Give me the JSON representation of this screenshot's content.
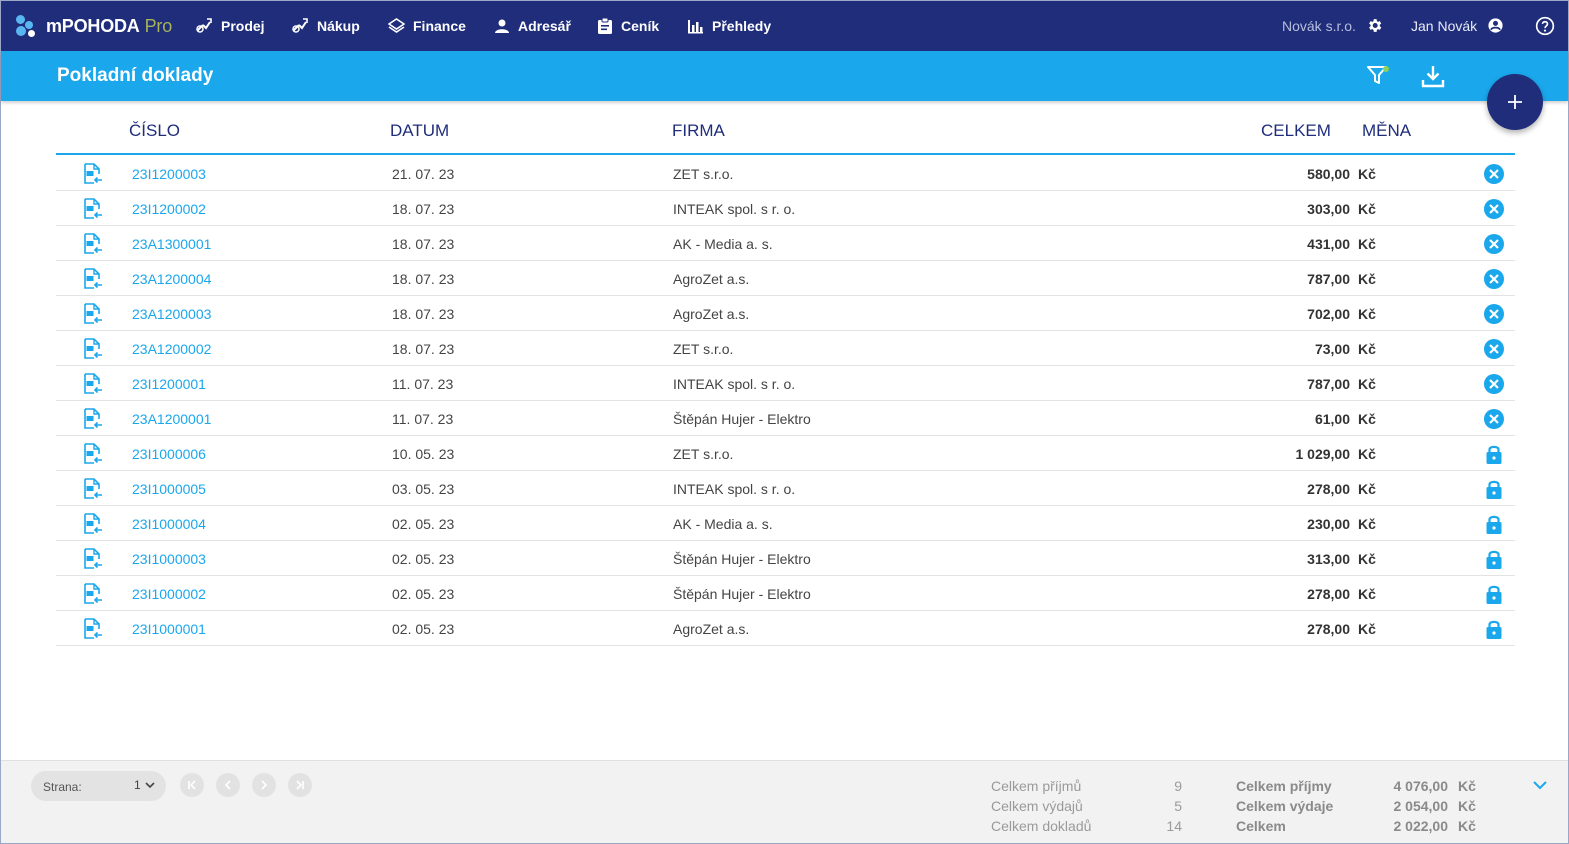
{
  "app": {
    "name": "mPOHODA",
    "edition": "Pro"
  },
  "nav": [
    {
      "label": "Prodej",
      "icon": "sales-icon"
    },
    {
      "label": "Nákup",
      "icon": "purchase-icon"
    },
    {
      "label": "Finance",
      "icon": "finance-icon"
    },
    {
      "label": "Adresář",
      "icon": "person-icon"
    },
    {
      "label": "Ceník",
      "icon": "clipboard-icon"
    },
    {
      "label": "Přehledy",
      "icon": "bar-chart-icon"
    }
  ],
  "company": "Novák s.r.o.",
  "user": "Jan Novák",
  "page_title": "Pokladní doklady",
  "columns": {
    "number": "ČÍSLO",
    "date": "DATUM",
    "firm": "FIRMA",
    "total": "CELKEM",
    "currency": "MĚNA"
  },
  "rows": [
    {
      "number": "23I1200003",
      "date": "21. 07. 23",
      "firm": "ZET s.r.o.",
      "total": "580,00",
      "currency": "Kč",
      "type": "HP",
      "status": "cancel"
    },
    {
      "number": "23I1200002",
      "date": "18. 07. 23",
      "firm": "INTEAK spol. s r. o.",
      "total": "303,00",
      "currency": "Kč",
      "type": "HP",
      "status": "cancel"
    },
    {
      "number": "23A1300001",
      "date": "18. 07. 23",
      "firm": "AK - Media a. s.",
      "total": "431,00",
      "currency": "Kč",
      "type": "HV",
      "status": "cancel"
    },
    {
      "number": "23A1200004",
      "date": "18. 07. 23",
      "firm": "AgroZet a.s.",
      "total": "787,00",
      "currency": "Kč",
      "type": "HV",
      "status": "cancel"
    },
    {
      "number": "23A1200003",
      "date": "18. 07. 23",
      "firm": "AgroZet a.s.",
      "total": "702,00",
      "currency": "Kč",
      "type": "HV",
      "status": "cancel"
    },
    {
      "number": "23A1200002",
      "date": "18. 07. 23",
      "firm": "ZET s.r.o.",
      "total": "73,00",
      "currency": "Kč",
      "type": "HV",
      "status": "cancel"
    },
    {
      "number": "23I1200001",
      "date": "11. 07. 23",
      "firm": "INTEAK spol. s r. o.",
      "total": "787,00",
      "currency": "Kč",
      "type": "HP",
      "status": "cancel"
    },
    {
      "number": "23A1200001",
      "date": "11. 07. 23",
      "firm": "Štěpán Hujer - Elektro",
      "total": "61,00",
      "currency": "Kč",
      "type": "HV",
      "status": "cancel"
    },
    {
      "number": "23I1000006",
      "date": "10. 05. 23",
      "firm": "ZET s.r.o.",
      "total": "1 029,00",
      "currency": "Kč",
      "type": "HP",
      "status": "locked"
    },
    {
      "number": "23I1000005",
      "date": "03. 05. 23",
      "firm": "INTEAK spol. s r. o.",
      "total": "278,00",
      "currency": "Kč",
      "type": "HP",
      "status": "locked"
    },
    {
      "number": "23I1000004",
      "date": "02. 05. 23",
      "firm": "AK - Media a. s.",
      "total": "230,00",
      "currency": "Kč",
      "type": "HP",
      "status": "locked"
    },
    {
      "number": "23I1000003",
      "date": "02. 05. 23",
      "firm": "Štěpán Hujer - Elektro",
      "total": "313,00",
      "currency": "Kč",
      "type": "HP",
      "status": "locked"
    },
    {
      "number": "23I1000002",
      "date": "02. 05. 23",
      "firm": "Štěpán Hujer - Elektro",
      "total": "278,00",
      "currency": "Kč",
      "type": "HP",
      "status": "locked"
    },
    {
      "number": "23I1000001",
      "date": "02. 05. 23",
      "firm": "AgroZet a.s.",
      "total": "278,00",
      "currency": "Kč",
      "type": "HP",
      "status": "locked"
    }
  ],
  "footer": {
    "page_label": "Strana:",
    "page_value": "1",
    "summary_counts": [
      {
        "label": "Celkem příjmů",
        "value": "9"
      },
      {
        "label": "Celkem výdajů",
        "value": "5"
      },
      {
        "label": "Celkem dokladů",
        "value": "14"
      }
    ],
    "summary_amounts": [
      {
        "label": "Celkem příjmy",
        "value": "4 076,00",
        "currency": "Kč"
      },
      {
        "label": "Celkem výdaje",
        "value": "2 054,00",
        "currency": "Kč"
      },
      {
        "label": "Celkem",
        "value": "2 022,00",
        "currency": "Kč"
      }
    ]
  },
  "colors": {
    "nav_bg": "#1f2d7b",
    "accent": "#1aa7ec",
    "link": "#1aa7ec"
  }
}
